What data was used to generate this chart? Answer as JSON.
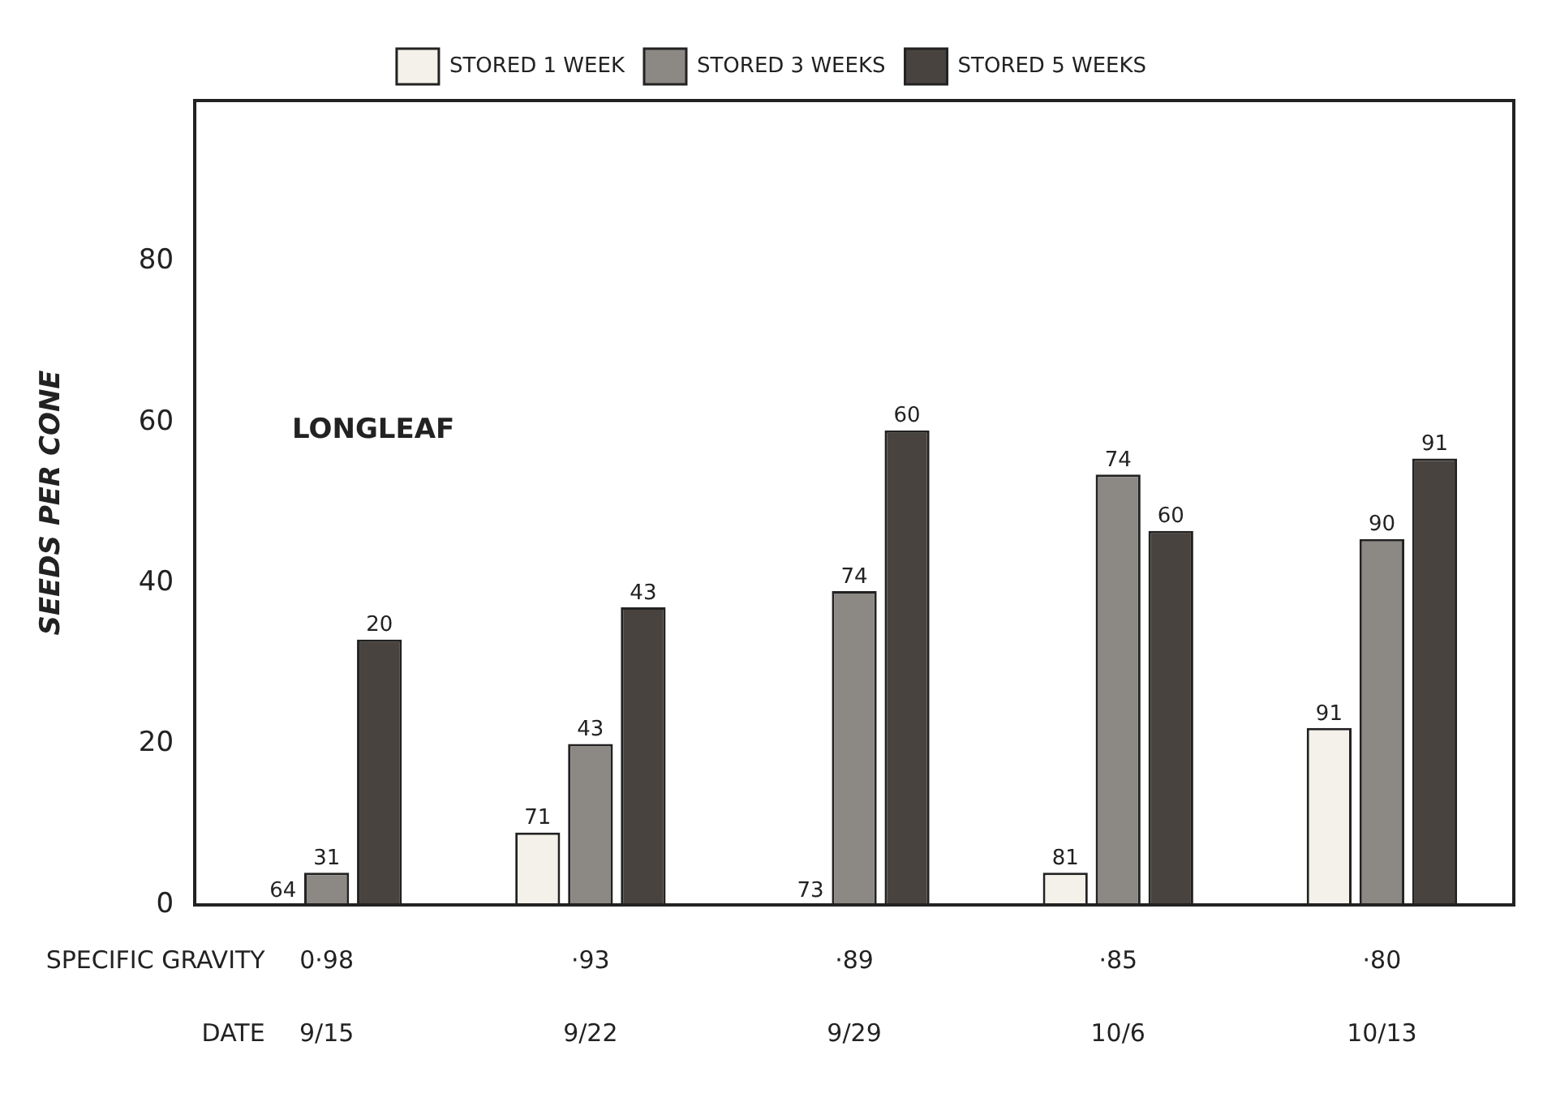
{
  "chart_data": {
    "type": "bar",
    "categories": [
      "0·98",
      "·93",
      "·89",
      "·85",
      "·80"
    ],
    "ylabel": "SEEDS PER CONE",
    "annotations": [
      "LONGLEAF",
      "SPECIFIC GRAVITY",
      "DATE",
      "9/15",
      "9/22",
      "9/29",
      "10/6",
      "10/13",
      "64",
      "71",
      "73",
      "81",
      "91",
      "31",
      "43",
      "74",
      "74",
      "90",
      "20",
      "43",
      "60",
      "60",
      "91"
    ],
    "ylim": [
      0,
      100
    ],
    "yticks": [
      0,
      20,
      40,
      60,
      80
    ],
    "grid": false,
    "legend": "top",
    "series": [
      {
        "name": "STORED 1 WEEK",
        "color": "#f4f1ea",
        "values": [
          0,
          9,
          0,
          4,
          22
        ]
      },
      {
        "name": "STORED 3 WEEKS",
        "color": "#8c8884",
        "values": [
          4,
          20,
          39,
          53.5,
          45.5
        ]
      },
      {
        "name": "STORED 5 WEEKS",
        "color": "#48433f",
        "values": [
          33,
          37,
          59,
          46.5,
          55.5
        ]
      }
    ]
  }
}
